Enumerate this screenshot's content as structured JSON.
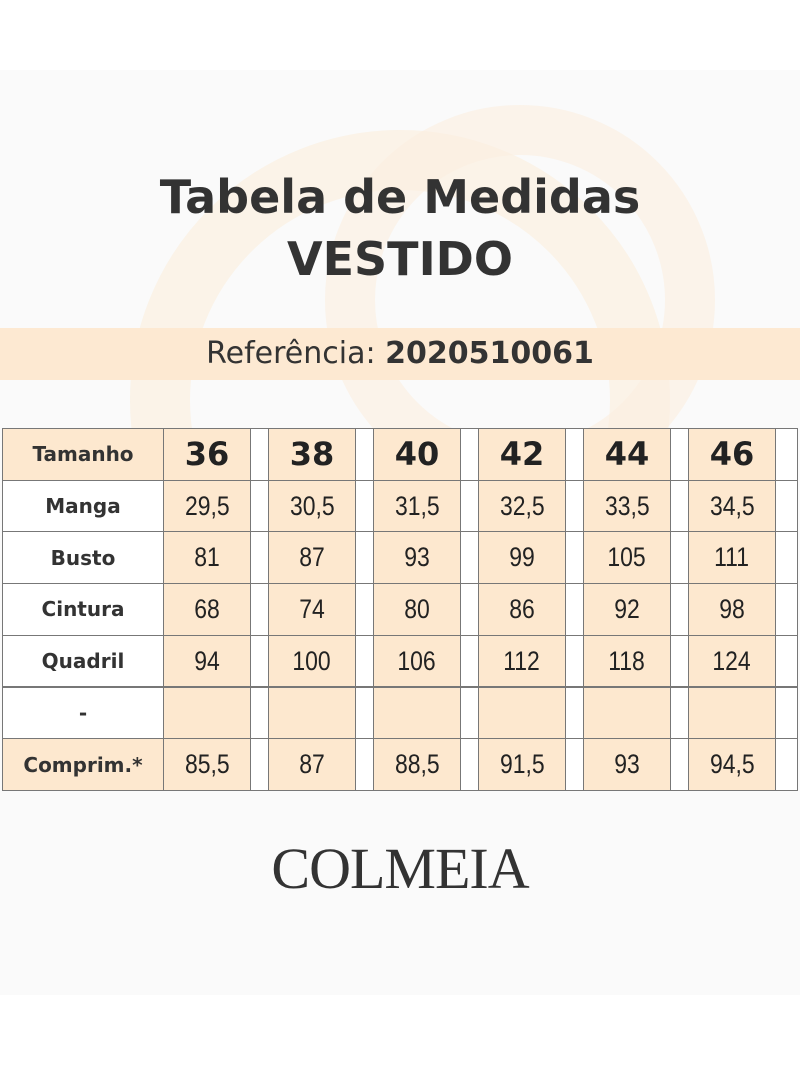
{
  "header": {
    "title": "Tabela de Medidas",
    "subtitle": "VESTIDO",
    "reference_label": "Referência:",
    "reference": "2020510061"
  },
  "table": {
    "header": {
      "label": "Tamanho",
      "cells": [
        "36",
        "38",
        "40",
        "42",
        "44",
        "46"
      ]
    },
    "rows": [
      {
        "label": "Manga",
        "cells": [
          "29,5",
          "30,5",
          "31,5",
          "32,5",
          "33,5",
          "34,5"
        ]
      },
      {
        "label": "Busto",
        "cells": [
          "81",
          "87",
          "93",
          "99",
          "105",
          "111"
        ]
      },
      {
        "label": "Cintura",
        "cells": [
          "68",
          "74",
          "80",
          "86",
          "92",
          "98"
        ]
      },
      {
        "label": "Quadril",
        "cells": [
          "94",
          "100",
          "106",
          "112",
          "118",
          "124"
        ]
      },
      {
        "label": "-"
      },
      {
        "label": "Comprim.*",
        "cells": [
          "85,5",
          "87",
          "88,5",
          "91,5",
          "93",
          "94,5"
        ]
      }
    ]
  },
  "footer": {
    "logo": "COLMEIA"
  }
}
